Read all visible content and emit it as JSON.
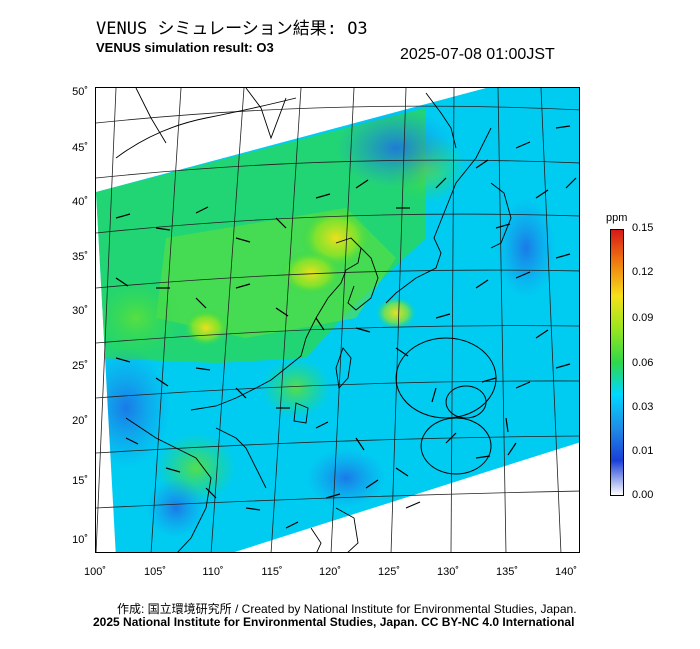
{
  "title_jp": "VENUS シミュレーション結果: O3",
  "title_en": "VENUS simulation result: O3",
  "timestamp": "2025-07-08 01:00JST",
  "map": {
    "lat_labels": [
      "50˚",
      "45˚",
      "40˚",
      "35˚",
      "30˚",
      "25˚",
      "20˚",
      "15˚",
      "10˚"
    ],
    "lon_labels": [
      "100˚",
      "105˚",
      "110˚",
      "115˚",
      "120˚",
      "125˚",
      "130˚",
      "135˚",
      "140˚"
    ]
  },
  "colorbar": {
    "unit": "ppm",
    "ticks": [
      "0.15",
      "0.12",
      "0.09",
      "0.06",
      "0.03",
      "0.01",
      "0.00"
    ],
    "colors": [
      "#ffffff",
      "#1a3fd8",
      "#1f8be6",
      "#00d8ff",
      "#2ed84a",
      "#9ae61e",
      "#f6e01a",
      "#f07a10",
      "#d81818"
    ]
  },
  "credit_line1": "作成: 国立環境研究所 / Created by National Institute for Environmental Studies, Japan.",
  "credit_line2": "2025 National Institute for Environmental Studies, Japan. CC BY-NC 4.0 International"
}
